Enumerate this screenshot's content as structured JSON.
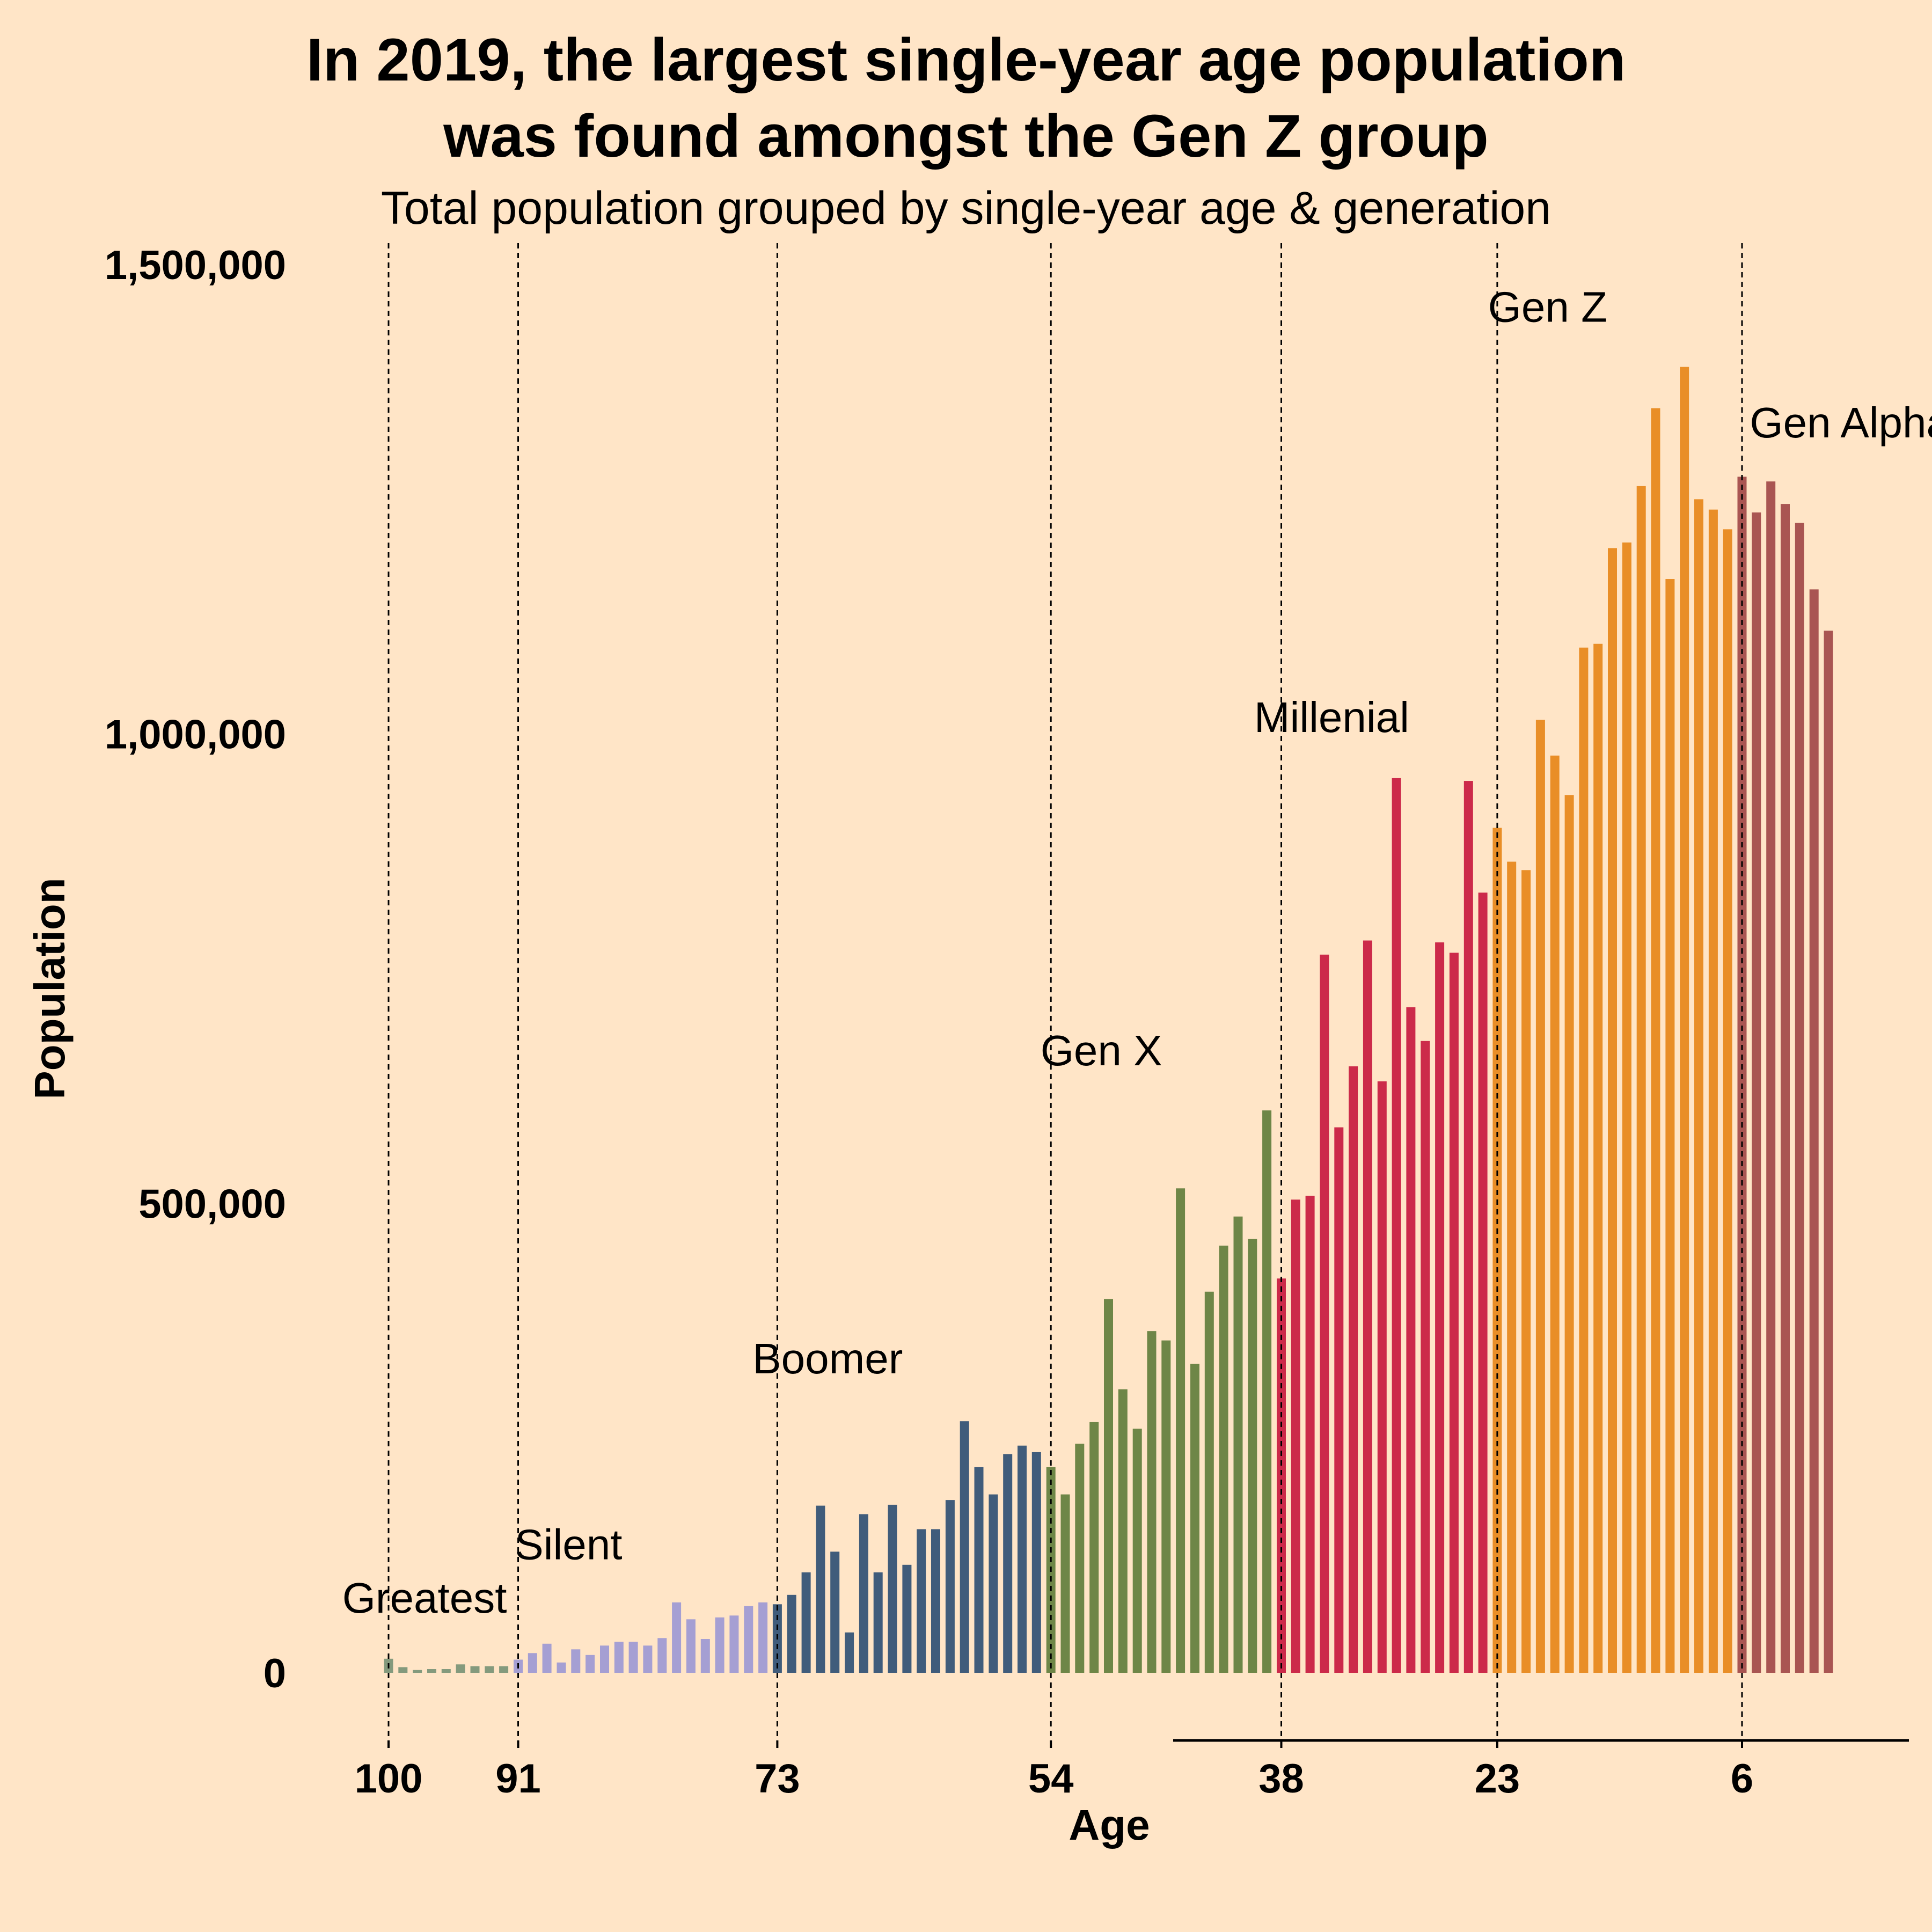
{
  "chart_data": {
    "type": "bar",
    "title_lines": [
      "In 2019, the largest single-year age population",
      "was found amongst the Gen Z group"
    ],
    "subtitle": "Total population grouped by single-year age & generation",
    "xlabel": "Age",
    "ylabel": "Population",
    "ylim": [
      0,
      1500000
    ],
    "y_ticks": [
      0,
      500000,
      1000000,
      1500000
    ],
    "y_tick_labels": [
      "0",
      "500,000",
      "1,000,000",
      "1,500,000"
    ],
    "x_ticks": [
      100,
      91,
      73,
      54,
      38,
      23,
      6
    ],
    "x_tick_labels": [
      "100",
      "91",
      "73",
      "54",
      "38",
      "23",
      "6"
    ],
    "x_range_reversed": [
      105.5,
      -5.5
    ],
    "grid": false,
    "generation_boundaries": [
      100,
      91,
      73,
      54,
      38,
      23,
      6
    ],
    "annotations": [
      {
        "text": "Greatest",
        "age": 97.5,
        "y": 80000
      },
      {
        "text": "Silent",
        "age": 87.5,
        "y": 137000
      },
      {
        "text": "Boomer",
        "age": 69.5,
        "y": 335000
      },
      {
        "text": "Gen X",
        "age": 50.5,
        "y": 663000
      },
      {
        "text": "Millenial",
        "age": 34.5,
        "y": 1018000
      },
      {
        "text": "Gen Z",
        "age": 19.5,
        "y": 1455000
      },
      {
        "text": "Gen Alpha",
        "age": -1.5,
        "y": 1332000
      }
    ],
    "series": [
      {
        "name": "Greatest",
        "color": "#849A7D",
        "ages": [
          100,
          99,
          98,
          97,
          96,
          95,
          94,
          93,
          92
        ],
        "values": [
          15000,
          6000,
          3000,
          4000,
          4000,
          9000,
          7000,
          7000,
          7000
        ]
      },
      {
        "name": "Silent",
        "color": "#A59FD3",
        "ages": [
          91,
          90,
          89,
          88,
          87,
          86,
          85,
          84,
          83,
          82,
          81,
          80,
          79,
          78,
          77,
          76,
          75,
          74
        ],
        "values": [
          14000,
          21000,
          31000,
          11000,
          25000,
          19000,
          29000,
          33000,
          33000,
          29000,
          37000,
          75000,
          57000,
          36000,
          59000,
          61000,
          71000,
          75000
        ]
      },
      {
        "name": "Boomer",
        "color": "#405C7B",
        "ages": [
          73,
          72,
          71,
          70,
          69,
          68,
          67,
          66,
          65,
          64,
          63,
          62,
          61,
          60,
          59,
          58,
          57,
          56,
          55
        ],
        "values": [
          73000,
          83000,
          107000,
          178000,
          129000,
          43000,
          169000,
          107000,
          179000,
          115000,
          153000,
          153000,
          184000,
          268000,
          219000,
          190000,
          233000,
          242000,
          235000
        ]
      },
      {
        "name": "Gen X",
        "color": "#6E8647",
        "ages": [
          54,
          53,
          52,
          51,
          50,
          49,
          48,
          47,
          46,
          45,
          44,
          43,
          42,
          41,
          40,
          39
        ],
        "values": [
          219000,
          190000,
          244000,
          267000,
          398000,
          302000,
          260000,
          364000,
          354000,
          516000,
          329000,
          406000,
          455000,
          486000,
          462000,
          599000
        ]
      },
      {
        "name": "Millenial",
        "color": "#CC2A4A",
        "ages": [
          38,
          37,
          36,
          35,
          34,
          33,
          32,
          31,
          30,
          29,
          28,
          27,
          26,
          25,
          24
        ],
        "values": [
          420000,
          504000,
          508000,
          765000,
          581000,
          646000,
          780000,
          630000,
          953000,
          709000,
          673000,
          778000,
          767000,
          950000,
          831000
        ]
      },
      {
        "name": "Gen Z",
        "color": "#E98E27",
        "ages": [
          23,
          22,
          21,
          20,
          19,
          18,
          17,
          16,
          15,
          14,
          13,
          12,
          11,
          10,
          9,
          8,
          7
        ],
        "values": [
          900000,
          864000,
          855000,
          1015000,
          977000,
          935000,
          1092000,
          1096000,
          1198000,
          1204000,
          1264000,
          1347000,
          1165000,
          1391000,
          1250000,
          1239000,
          1218000
        ]
      },
      {
        "name": "Gen Alpha",
        "color": "#A95552",
        "ages": [
          6,
          5,
          4,
          3,
          2,
          1,
          0
        ],
        "values": [
          1274000,
          1236000,
          1269000,
          1245000,
          1225000,
          1154000,
          1110000
        ]
      }
    ]
  }
}
